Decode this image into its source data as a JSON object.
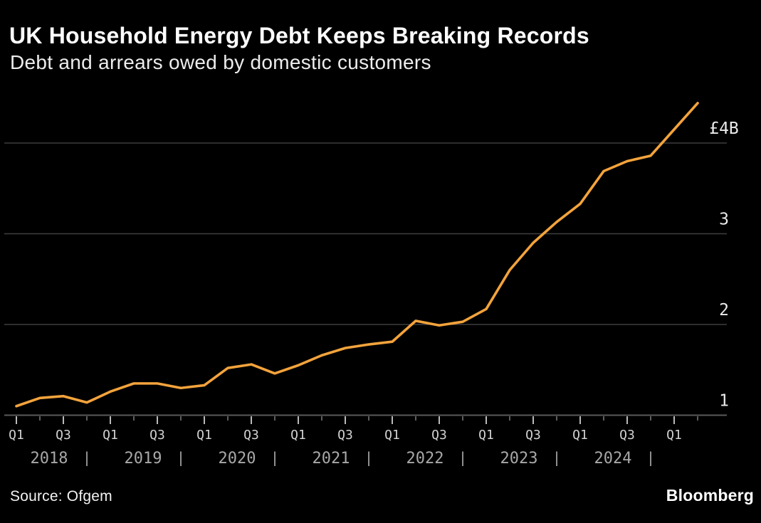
{
  "header": {
    "title": "UK Household Energy Debt Keeps Breaking Records",
    "subtitle": "Debt and arrears owed by domestic customers"
  },
  "footer": {
    "source": "Source: Ofgem",
    "brand": "Bloomberg"
  },
  "colors": {
    "background": "#000000",
    "line": "#F3A33C",
    "grid": "#3E3E3E",
    "axis": "#5A5A5A",
    "tick_major": "#CFCFCF",
    "tick_minor": "#8F8F8F",
    "y_label": "#EAEAEA",
    "q_label": "#D2D2D2",
    "year_label": "#A8A8A8"
  },
  "chart_data": {
    "type": "line",
    "title": "UK Household Energy Debt Keeps Breaking Records",
    "subtitle": "Debt and arrears owed by domestic customers",
    "unit": "GBP billions",
    "line_color": "#F3A33C",
    "grid": "horizontal",
    "legend": "none",
    "ylim": [
      1,
      4.6
    ],
    "x": [
      "Q1 2018",
      "Q2 2018",
      "Q3 2018",
      "Q4 2018",
      "Q1 2019",
      "Q2 2019",
      "Q3 2019",
      "Q4 2019",
      "Q1 2020",
      "Q2 2020",
      "Q3 2020",
      "Q4 2020",
      "Q1 2021",
      "Q2 2021",
      "Q3 2021",
      "Q4 2021",
      "Q1 2022",
      "Q2 2022",
      "Q3 2022",
      "Q4 2022",
      "Q1 2023",
      "Q2 2023",
      "Q3 2023",
      "Q4 2023",
      "Q1 2024",
      "Q2 2024",
      "Q3 2024",
      "Q4 2024",
      "Q1 2025",
      "Q2 2025"
    ],
    "values": [
      1.1,
      1.19,
      1.21,
      1.14,
      1.26,
      1.35,
      1.35,
      1.3,
      1.33,
      1.52,
      1.56,
      1.46,
      1.55,
      1.66,
      1.74,
      1.78,
      1.81,
      2.04,
      1.99,
      2.03,
      2.17,
      2.6,
      2.9,
      3.13,
      3.33,
      3.69,
      3.8,
      3.86,
      4.15,
      4.44
    ],
    "yticks": [
      {
        "value": 4,
        "label": "£4B"
      },
      {
        "value": 3,
        "label": "3"
      },
      {
        "value": 2,
        "label": "2"
      },
      {
        "value": 1,
        "label": "1"
      }
    ],
    "quarter_tick_labels": [
      "Q1",
      "Q3"
    ],
    "years": [
      "2018",
      "2019",
      "2020",
      "2021",
      "2022",
      "2023",
      "2024"
    ],
    "year_separator": "|"
  }
}
